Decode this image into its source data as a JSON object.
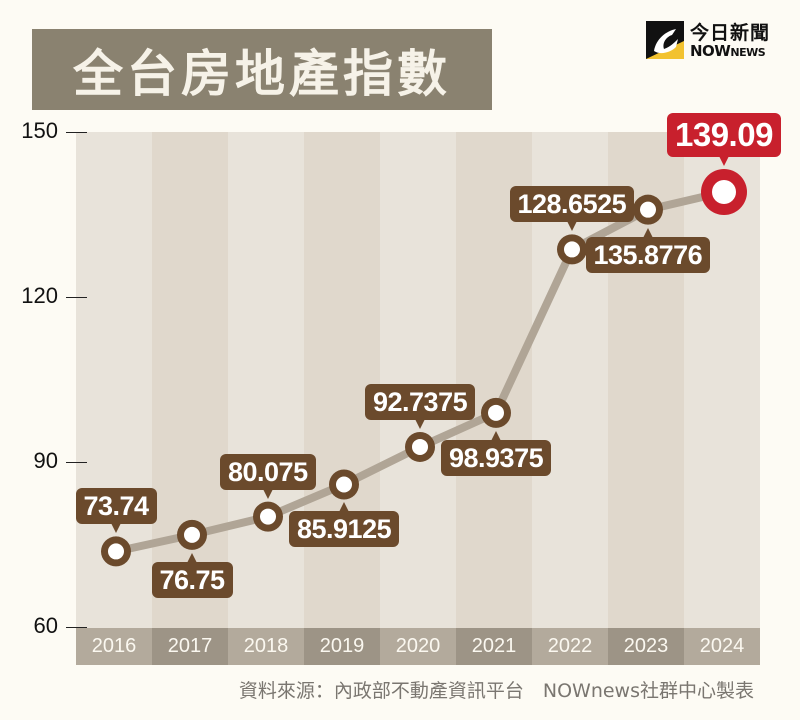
{
  "title": "全台房地產指數",
  "logo": {
    "cn": "今日新聞",
    "en_main": "NOW",
    "en_small": "NEWS"
  },
  "source": "資料來源：內政部不動產資訊平台　NOWnews社群中心製表",
  "colors": {
    "background": "#fdfbf4",
    "title_box": "#8a8270",
    "label_brown": "#6b4a2c",
    "highlight_red": "#c8202d",
    "line": "#b0a596",
    "col_light": "#e8e3da",
    "col_dark": "#e0d8cc",
    "year_light": "#b3aa9c",
    "year_dark": "#9d9486"
  },
  "yaxis": {
    "ticks": [
      "150",
      "120",
      "90",
      "60"
    ]
  },
  "years": [
    "2016",
    "2017",
    "2018",
    "2019",
    "2020",
    "2021",
    "2022",
    "2023",
    "2024"
  ],
  "labels": [
    "73.74",
    "76.75",
    "80.075",
    "85.9125",
    "92.7375",
    "98.9375",
    "128.6525",
    "135.8776",
    "139.09"
  ],
  "chart_data": {
    "type": "line",
    "title": "全台房地產指數",
    "categories": [
      "2016",
      "2017",
      "2018",
      "2019",
      "2020",
      "2021",
      "2022",
      "2023",
      "2024"
    ],
    "values": [
      73.74,
      76.75,
      80.075,
      85.9125,
      92.7375,
      98.9375,
      128.6525,
      135.8776,
      139.09
    ],
    "xlabel": "",
    "ylabel": "",
    "ylim": [
      60,
      150
    ],
    "yticks": [
      60,
      90,
      120,
      150
    ],
    "grid": false,
    "legend": null,
    "highlight": {
      "category": "2024",
      "value": 139.09,
      "color": "#c8202d"
    },
    "annotations": "each point labeled with its value; 2024 highlighted in red",
    "source": "資料來源：內政部不動產資訊平台　NOWnews社群中心製表"
  }
}
